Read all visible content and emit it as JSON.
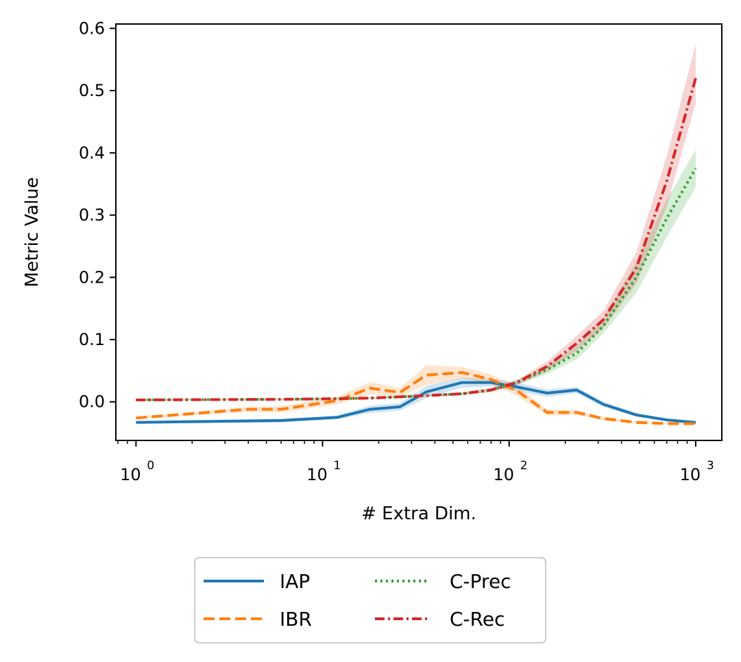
{
  "chart_data": {
    "type": "line",
    "xscale": "log",
    "xlabel": "# Extra Dim.",
    "ylabel": "Metric Value",
    "xlim": [
      0.78,
      1380
    ],
    "ylim": [
      -0.062,
      0.607
    ],
    "xticks": [
      {
        "value": 1,
        "base": "10",
        "exp": "0"
      },
      {
        "value": 10,
        "base": "10",
        "exp": "1"
      },
      {
        "value": 100,
        "base": "10",
        "exp": "2"
      },
      {
        "value": 1000,
        "base": "10",
        "exp": "3"
      }
    ],
    "yticks": [
      {
        "value": 0.0,
        "label": "0.0"
      },
      {
        "value": 0.1,
        "label": "0.1"
      },
      {
        "value": 0.2,
        "label": "0.2"
      },
      {
        "value": 0.3,
        "label": "0.3"
      },
      {
        "value": 0.4,
        "label": "0.4"
      },
      {
        "value": 0.5,
        "label": "0.5"
      },
      {
        "value": 0.6,
        "label": "0.6"
      }
    ],
    "legend_position": "below",
    "series": [
      {
        "name": "IAP",
        "color": "#1f77b4",
        "style": "solid",
        "x": [
          1,
          6,
          12,
          18,
          26,
          36,
          56,
          80,
          110,
          160,
          230,
          320,
          480,
          700,
          1000
        ],
        "y": [
          -0.033,
          -0.03,
          -0.025,
          -0.012,
          -0.008,
          0.016,
          0.031,
          0.031,
          0.024,
          0.014,
          0.019,
          -0.004,
          -0.021,
          -0.029,
          -0.033
        ],
        "lower": [
          -0.035,
          -0.033,
          -0.028,
          -0.018,
          -0.014,
          0.006,
          0.023,
          0.025,
          0.017,
          0.008,
          0.014,
          -0.008,
          -0.024,
          -0.031,
          -0.035
        ],
        "upper": [
          -0.031,
          -0.027,
          -0.022,
          -0.006,
          -0.002,
          0.026,
          0.039,
          0.037,
          0.031,
          0.02,
          0.024,
          0.0,
          -0.018,
          -0.027,
          -0.031
        ]
      },
      {
        "name": "IBR",
        "color": "#ff7f0e",
        "style": "dashed",
        "x": [
          1,
          4,
          6,
          12,
          18,
          26,
          36,
          56,
          80,
          110,
          160,
          230,
          320,
          480,
          700,
          1000
        ],
        "y": [
          -0.026,
          -0.012,
          -0.012,
          0.002,
          0.022,
          0.015,
          0.043,
          0.047,
          0.036,
          0.018,
          -0.017,
          -0.017,
          -0.027,
          -0.033,
          -0.035,
          -0.035
        ],
        "lower": [
          -0.028,
          -0.016,
          -0.017,
          -0.004,
          0.012,
          0.008,
          0.027,
          0.038,
          0.028,
          0.01,
          -0.022,
          -0.021,
          -0.03,
          -0.035,
          -0.036,
          -0.036
        ],
        "upper": [
          -0.024,
          -0.008,
          -0.007,
          0.008,
          0.032,
          0.022,
          0.059,
          0.056,
          0.044,
          0.026,
          -0.012,
          -0.013,
          -0.024,
          -0.031,
          -0.034,
          -0.034
        ]
      },
      {
        "name": "C-Prec",
        "color": "#2ca02c",
        "style": "dotted",
        "x": [
          1,
          6,
          12,
          18,
          26,
          36,
          56,
          80,
          110,
          160,
          230,
          320,
          480,
          700,
          1000
        ],
        "y": [
          0.003,
          0.004,
          0.005,
          0.006,
          0.008,
          0.01,
          0.013,
          0.019,
          0.031,
          0.052,
          0.078,
          0.122,
          0.2,
          0.295,
          0.375
        ],
        "lower": [
          0.002,
          0.003,
          0.004,
          0.005,
          0.007,
          0.009,
          0.011,
          0.016,
          0.027,
          0.045,
          0.068,
          0.11,
          0.175,
          0.265,
          0.345
        ],
        "upper": [
          0.004,
          0.005,
          0.006,
          0.007,
          0.009,
          0.011,
          0.015,
          0.022,
          0.035,
          0.059,
          0.09,
          0.135,
          0.225,
          0.325,
          0.405
        ]
      },
      {
        "name": "C-Rec",
        "color": "#d62728",
        "style": "dashdot",
        "x": [
          1,
          6,
          12,
          18,
          26,
          36,
          56,
          80,
          110,
          160,
          230,
          320,
          480,
          700,
          1000
        ],
        "y": [
          0.003,
          0.004,
          0.005,
          0.006,
          0.008,
          0.01,
          0.013,
          0.019,
          0.031,
          0.057,
          0.094,
          0.132,
          0.215,
          0.355,
          0.52
        ],
        "lower": [
          0.002,
          0.003,
          0.004,
          0.005,
          0.007,
          0.009,
          0.011,
          0.016,
          0.027,
          0.049,
          0.082,
          0.118,
          0.19,
          0.315,
          0.48
        ],
        "upper": [
          0.004,
          0.005,
          0.006,
          0.007,
          0.009,
          0.011,
          0.015,
          0.022,
          0.035,
          0.065,
          0.106,
          0.146,
          0.24,
          0.395,
          0.575
        ]
      }
    ]
  }
}
